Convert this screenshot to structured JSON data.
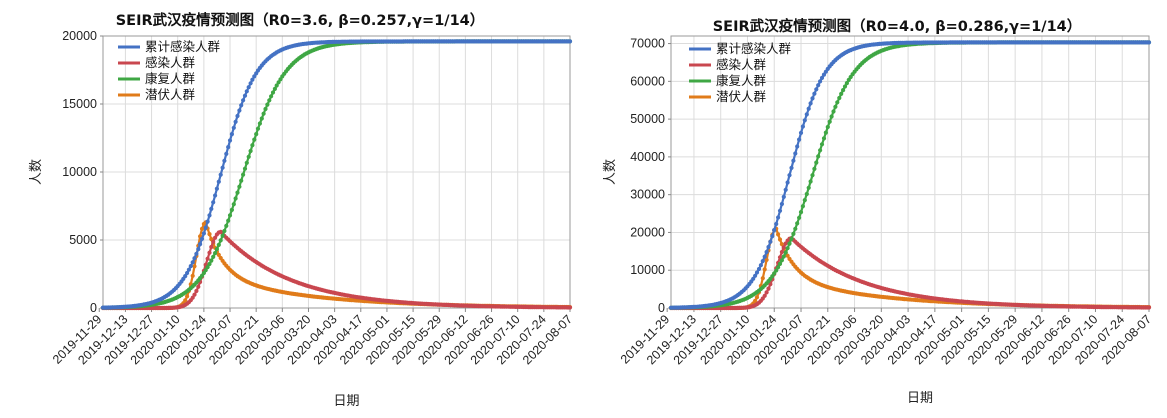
{
  "chart_data": [
    {
      "type": "line",
      "title": "SEIR武汉疫情预测图（R0=3.6, β=0.257,γ=1/14）",
      "xlabel": "日期",
      "ylabel": "人数",
      "x_start": "2019-12-01",
      "days": 250,
      "ylim": [
        0,
        20000
      ],
      "yticks": [
        0,
        5000,
        10000,
        15000,
        20000
      ],
      "ytick_labels": [
        "0",
        "5000",
        "10000",
        "15000",
        "20000"
      ],
      "xtick_labels": [
        "2019-11-29",
        "2019-12-13",
        "2019-12-27",
        "2020-01-10",
        "2020-01-24",
        "2020-02-07",
        "2020-02-21",
        "2020-03-06",
        "2020-03-20",
        "2020-04-03",
        "2020-04-17",
        "2020-05-01",
        "2020-05-15",
        "2020-05-29",
        "2020-06-12",
        "2020-06-26",
        "2020-07-10",
        "2020-07-24",
        "2020-08-07"
      ],
      "legend_position": "top-left",
      "grid": true,
      "series": [
        {
          "name": "累计感染人群",
          "color": "#4472c4",
          "kind": "sigmoid",
          "max": 19600,
          "mid": 63,
          "k": 0.105
        },
        {
          "name": "感染人群",
          "color": "#c9474f",
          "kind": "active",
          "peak": 5600,
          "peak_day": 63
        },
        {
          "name": "康复人群",
          "color": "#3fa744",
          "kind": "sigmoid",
          "max": 19600,
          "mid": 75,
          "k": 0.09
        },
        {
          "name": "潜伏人群",
          "color": "#e07b1a",
          "kind": "spike",
          "peak": 6300,
          "peak_day": 55
        }
      ]
    },
    {
      "type": "line",
      "title": "SEIR武汉疫情预测图（R0=4.0, β=0.286,γ=1/14）",
      "xlabel": "日期",
      "ylabel": "人数",
      "x_start": "2019-12-01",
      "days": 250,
      "ylim": [
        0,
        72000
      ],
      "yticks": [
        0,
        10000,
        20000,
        30000,
        40000,
        50000,
        60000,
        70000
      ],
      "ytick_labels": [
        "0",
        "10000",
        "20000",
        "30000",
        "40000",
        "50000",
        "60000",
        "70000"
      ],
      "xtick_labels": [
        "2019-11-29",
        "2019-12-13",
        "2019-12-27",
        "2020-01-10",
        "2020-01-24",
        "2020-02-07",
        "2020-02-21",
        "2020-03-06",
        "2020-03-20",
        "2020-04-03",
        "2020-04-17",
        "2020-05-01",
        "2020-05-15",
        "2020-05-29",
        "2020-06-12",
        "2020-06-26",
        "2020-07-10",
        "2020-07-24",
        "2020-08-07"
      ],
      "legend_position": "top-left",
      "grid": true,
      "series": [
        {
          "name": "累计感染人群",
          "color": "#4472c4",
          "kind": "sigmoid",
          "max": 70300,
          "mid": 62,
          "k": 0.11
        },
        {
          "name": "感染人群",
          "color": "#c9474f",
          "kind": "active",
          "peak": 18500,
          "peak_day": 63
        },
        {
          "name": "康复人群",
          "color": "#3fa744",
          "kind": "sigmoid",
          "max": 70300,
          "mid": 74,
          "k": 0.095
        },
        {
          "name": "潜伏人群",
          "color": "#e07b1a",
          "kind": "spike",
          "peak": 21000,
          "peak_day": 55
        }
      ]
    }
  ]
}
